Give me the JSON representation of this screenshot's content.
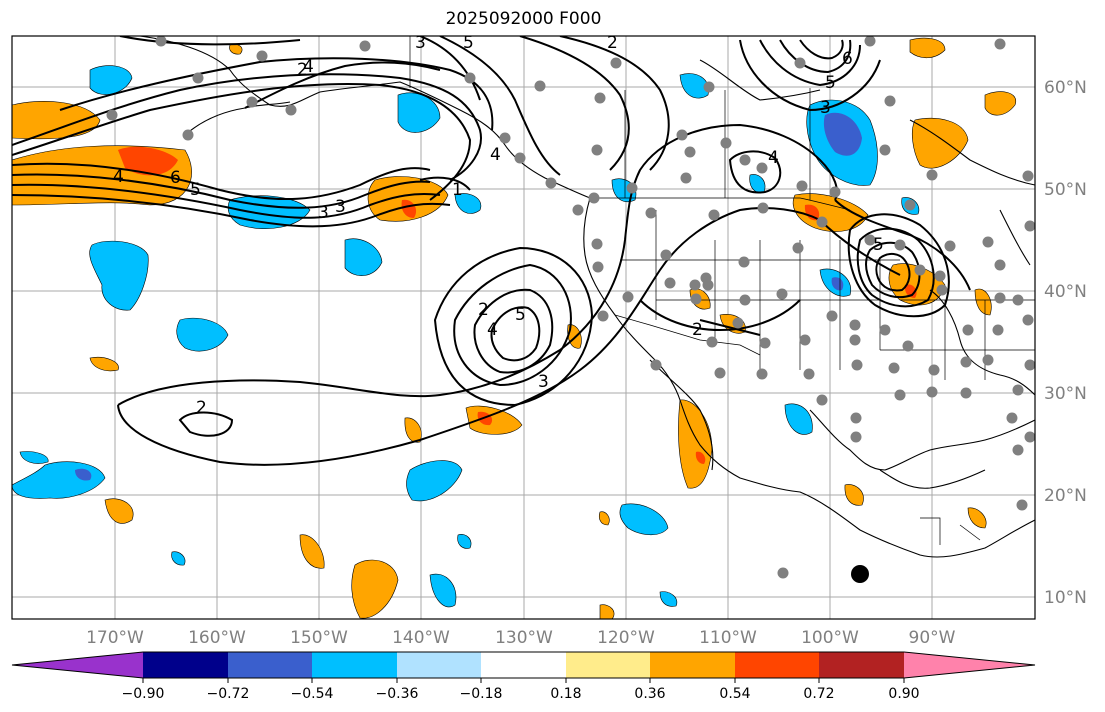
{
  "title": "2025092000 F000",
  "lon_labels": [
    "170°W",
    "160°W",
    "150°W",
    "140°W",
    "130°W",
    "120°W",
    "110°W",
    "100°W",
    "90°W"
  ],
  "lat_labels": [
    "60°N",
    "50°N",
    "40°N",
    "30°N",
    "20°N",
    "10°N"
  ],
  "colorbar": {
    "ticks": [
      "−0.90",
      "−0.72",
      "−0.54",
      "−0.36",
      "−0.18",
      "0.18",
      "0.36",
      "0.54",
      "0.72",
      "0.90"
    ],
    "colors": [
      "#9932cc",
      "#00008b",
      "#3a5fcd",
      "#00bfff",
      "#b0e2ff",
      "#ffffff",
      "#ffec8b",
      "#ffa500",
      "#ff4500",
      "#b22222",
      "#ff82ab"
    ]
  },
  "contour_labels": [
    "2",
    "3",
    "4",
    "5",
    "6",
    "1",
    "2",
    "2",
    "3",
    "4",
    "5",
    "2",
    "3",
    "4",
    "5",
    "6",
    "5",
    "4",
    "3",
    "5",
    "3",
    "2",
    "4"
  ],
  "colors": {
    "positive": "#ffa500",
    "positive_strong": "#ff4500",
    "negative": "#00bfff",
    "negative_strong": "#3a5fcd",
    "grid": "#a0a0a0",
    "station": "#808080"
  }
}
